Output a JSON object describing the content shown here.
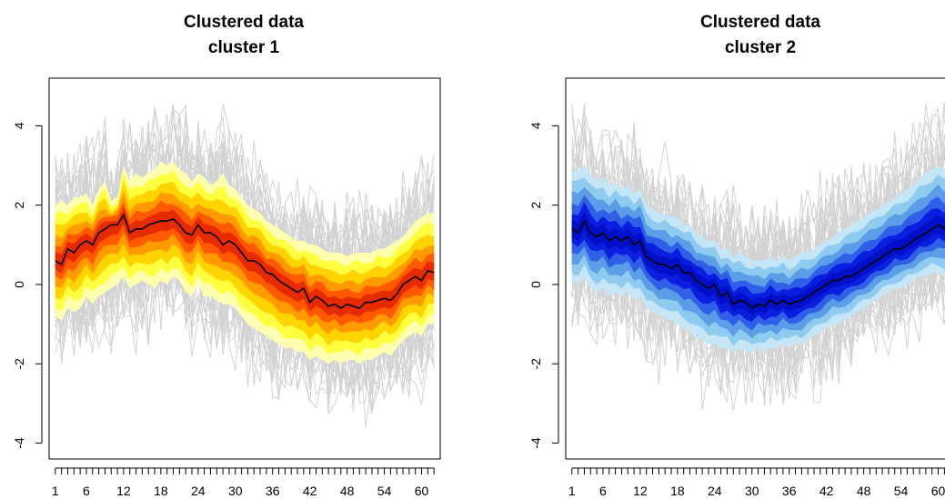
{
  "chart_data": [
    {
      "type": "line",
      "title": "Clustered data",
      "subtitle": "cluster 1",
      "xlabel": "",
      "ylabel": "",
      "x_ticks": [
        1,
        6,
        12,
        18,
        24,
        30,
        36,
        42,
        48,
        54,
        60
      ],
      "y_ticks": [
        -4,
        -2,
        0,
        2,
        4
      ],
      "xlim": [
        0,
        63
      ],
      "ylim": [
        -4.4,
        5.2
      ],
      "n_points": 62,
      "grid": false,
      "palette": {
        "band_outer": "#ffffb0",
        "band_2": "#ffff40",
        "band_3": "#ffd400",
        "band_4": "#ff9a00",
        "band_5": "#ff5a00",
        "band_inner": "#e82a00",
        "median": "#000000",
        "traces": "#d3d3d3"
      },
      "series": [
        {
          "role": "median",
          "values": [
            0.6,
            0.5,
            0.9,
            0.8,
            1.0,
            1.1,
            1.0,
            1.3,
            1.4,
            1.5,
            1.5,
            1.75,
            1.3,
            1.4,
            1.4,
            1.5,
            1.55,
            1.6,
            1.6,
            1.65,
            1.5,
            1.3,
            1.25,
            1.5,
            1.3,
            1.3,
            1.2,
            1.0,
            1.1,
            1.0,
            0.8,
            0.6,
            0.6,
            0.5,
            0.3,
            0.25,
            0.1,
            0.0,
            -0.1,
            -0.2,
            -0.1,
            -0.45,
            -0.3,
            -0.4,
            -0.55,
            -0.5,
            -0.6,
            -0.5,
            -0.55,
            -0.6,
            -0.45,
            -0.45,
            -0.4,
            -0.35,
            -0.4,
            -0.25,
            0.0,
            0.1,
            0.2,
            0.1,
            0.35,
            0.3
          ]
        },
        {
          "role": "upper_envelope",
          "values": [
            2.0,
            2.1,
            2.0,
            2.2,
            2.2,
            2.3,
            2.0,
            2.4,
            2.6,
            2.1,
            2.2,
            3.0,
            2.6,
            2.8,
            2.7,
            2.8,
            2.9,
            3.1,
            3.0,
            3.1,
            2.9,
            2.8,
            2.6,
            2.8,
            2.7,
            2.5,
            2.6,
            2.8,
            2.5,
            2.4,
            2.2,
            2.0,
            1.9,
            1.8,
            1.6,
            1.5,
            1.4,
            1.3,
            1.2,
            1.1,
            1.1,
            1.0,
            1.0,
            0.9,
            0.8,
            0.8,
            0.8,
            0.7,
            0.8,
            0.8,
            0.8,
            0.8,
            0.9,
            0.9,
            1.0,
            1.1,
            1.2,
            1.4,
            1.6,
            1.7,
            1.8,
            1.8
          ]
        },
        {
          "role": "lower_envelope",
          "values": [
            -0.8,
            -0.9,
            -0.6,
            -0.7,
            -0.6,
            -0.3,
            -0.5,
            -0.3,
            -0.2,
            -0.1,
            0.0,
            0.2,
            -0.1,
            0.0,
            0.1,
            0.0,
            -0.1,
            0.1,
            0.0,
            0.2,
            0.1,
            -0.2,
            -0.3,
            0.0,
            -0.3,
            -0.3,
            -0.4,
            -0.5,
            -0.5,
            -0.6,
            -0.8,
            -1.0,
            -1.1,
            -1.2,
            -1.3,
            -1.4,
            -1.5,
            -1.6,
            -1.6,
            -1.7,
            -1.7,
            -1.9,
            -1.8,
            -1.9,
            -2.0,
            -1.9,
            -2.0,
            -1.9,
            -1.9,
            -2.0,
            -1.9,
            -1.9,
            -1.8,
            -1.7,
            -1.8,
            -1.6,
            -1.4,
            -1.3,
            -1.2,
            -1.3,
            -1.0,
            -1.0
          ]
        }
      ]
    },
    {
      "type": "line",
      "title": "Clustered data",
      "subtitle": "cluster 2",
      "xlabel": "",
      "ylabel": "",
      "x_ticks": [
        1,
        6,
        12,
        18,
        24,
        30,
        36,
        42,
        48,
        54,
        60
      ],
      "y_ticks": [
        -4,
        -2,
        0,
        2,
        4
      ],
      "xlim": [
        0,
        63
      ],
      "ylim": [
        -4.4,
        5.2
      ],
      "n_points": 62,
      "grid": false,
      "palette": {
        "band_outer": "#c4e6f7",
        "band_2": "#8ecbee",
        "band_3": "#5b9de6",
        "band_4": "#2f5fe6",
        "band_5": "#0a1ee0",
        "band_inner": "#0010c8",
        "median": "#000000",
        "traces": "#d3d3d3"
      },
      "series": [
        {
          "role": "median",
          "values": [
            1.4,
            1.3,
            1.6,
            1.3,
            1.2,
            1.3,
            1.1,
            1.2,
            1.1,
            1.2,
            1.0,
            1.1,
            0.7,
            0.6,
            0.5,
            0.5,
            0.4,
            0.5,
            0.3,
            0.3,
            0.1,
            0.0,
            -0.1,
            0.0,
            -0.3,
            -0.2,
            -0.5,
            -0.4,
            -0.45,
            -0.6,
            -0.5,
            -0.55,
            -0.4,
            -0.5,
            -0.4,
            -0.5,
            -0.45,
            -0.4,
            -0.3,
            -0.2,
            -0.1,
            0.0,
            0.1,
            0.1,
            0.2,
            0.2,
            0.3,
            0.4,
            0.5,
            0.6,
            0.7,
            0.8,
            0.9,
            0.9,
            1.0,
            1.1,
            1.2,
            1.3,
            1.4,
            1.5,
            1.4,
            1.4
          ]
        },
        {
          "role": "upper_envelope",
          "values": [
            2.8,
            2.9,
            3.0,
            2.8,
            2.6,
            2.7,
            2.5,
            2.6,
            2.4,
            2.5,
            2.3,
            2.4,
            2.0,
            1.9,
            1.8,
            1.8,
            1.7,
            1.7,
            1.5,
            1.5,
            1.3,
            1.2,
            1.1,
            1.1,
            0.9,
            0.9,
            0.7,
            0.8,
            0.7,
            0.6,
            0.6,
            0.6,
            0.7,
            0.6,
            0.7,
            0.6,
            0.7,
            0.8,
            0.8,
            0.9,
            1.0,
            1.1,
            1.2,
            1.3,
            1.4,
            1.5,
            1.6,
            1.7,
            1.8,
            1.9,
            2.0,
            2.1,
            2.2,
            2.3,
            2.4,
            2.5,
            2.7,
            2.8,
            2.9,
            3.0,
            2.9,
            2.8
          ]
        },
        {
          "role": "lower_envelope",
          "values": [
            0.1,
            0.0,
            0.2,
            -0.1,
            -0.2,
            -0.1,
            -0.3,
            -0.2,
            -0.3,
            -0.2,
            -0.4,
            -0.3,
            -0.6,
            -0.7,
            -0.8,
            -0.8,
            -0.9,
            -1.0,
            -1.1,
            -1.2,
            -1.3,
            -1.4,
            -1.5,
            -1.5,
            -1.6,
            -1.6,
            -1.7,
            -1.6,
            -1.7,
            -1.7,
            -1.6,
            -1.7,
            -1.6,
            -1.6,
            -1.5,
            -1.6,
            -1.5,
            -1.5,
            -1.4,
            -1.3,
            -1.2,
            -1.1,
            -1.0,
            -1.0,
            -0.9,
            -0.8,
            -0.7,
            -0.6,
            -0.5,
            -0.4,
            -0.3,
            -0.2,
            -0.1,
            -0.1,
            0.0,
            0.1,
            0.2,
            0.2,
            0.3,
            0.3,
            0.2,
            0.1
          ]
        }
      ]
    }
  ]
}
